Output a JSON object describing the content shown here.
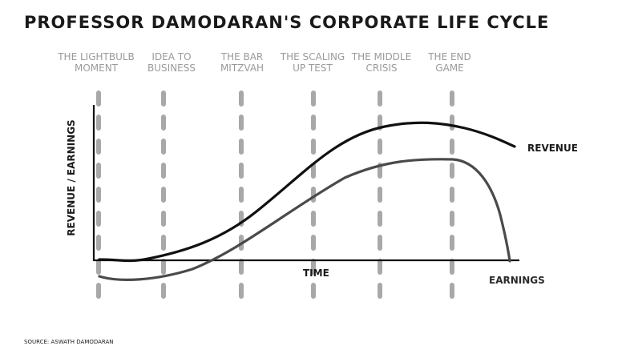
{
  "title": "PROFESSOR DAMODARAN'S CORPORATE LIFE CYCLE",
  "stages": [
    {
      "line1": "THE LIGHTBULB",
      "line2": "MOMENT"
    },
    {
      "line1": "IDEA TO",
      "line2": "BUSINESS"
    },
    {
      "line1": "THE BAR",
      "line2": "MITZVAH"
    },
    {
      "line1": "THE SCALING",
      "line2": "UP TEST"
    },
    {
      "line1": "THE MIDDLE",
      "line2": "CRISIS"
    },
    {
      "line1": "THE END",
      "line2": "GAME"
    }
  ],
  "axes": {
    "y_label": "REVENUE / EARNINGS",
    "x_label": "TIME"
  },
  "curves": {
    "revenue_label": "REVENUE",
    "earnings_label": "EARNINGS"
  },
  "colors": {
    "revenue": "#111111",
    "earnings": "#4a4a4a",
    "stage_lines": "#a8a8a8",
    "axes": "#111111"
  },
  "source": "SOURCE: ASWATH DAMODARAN"
}
